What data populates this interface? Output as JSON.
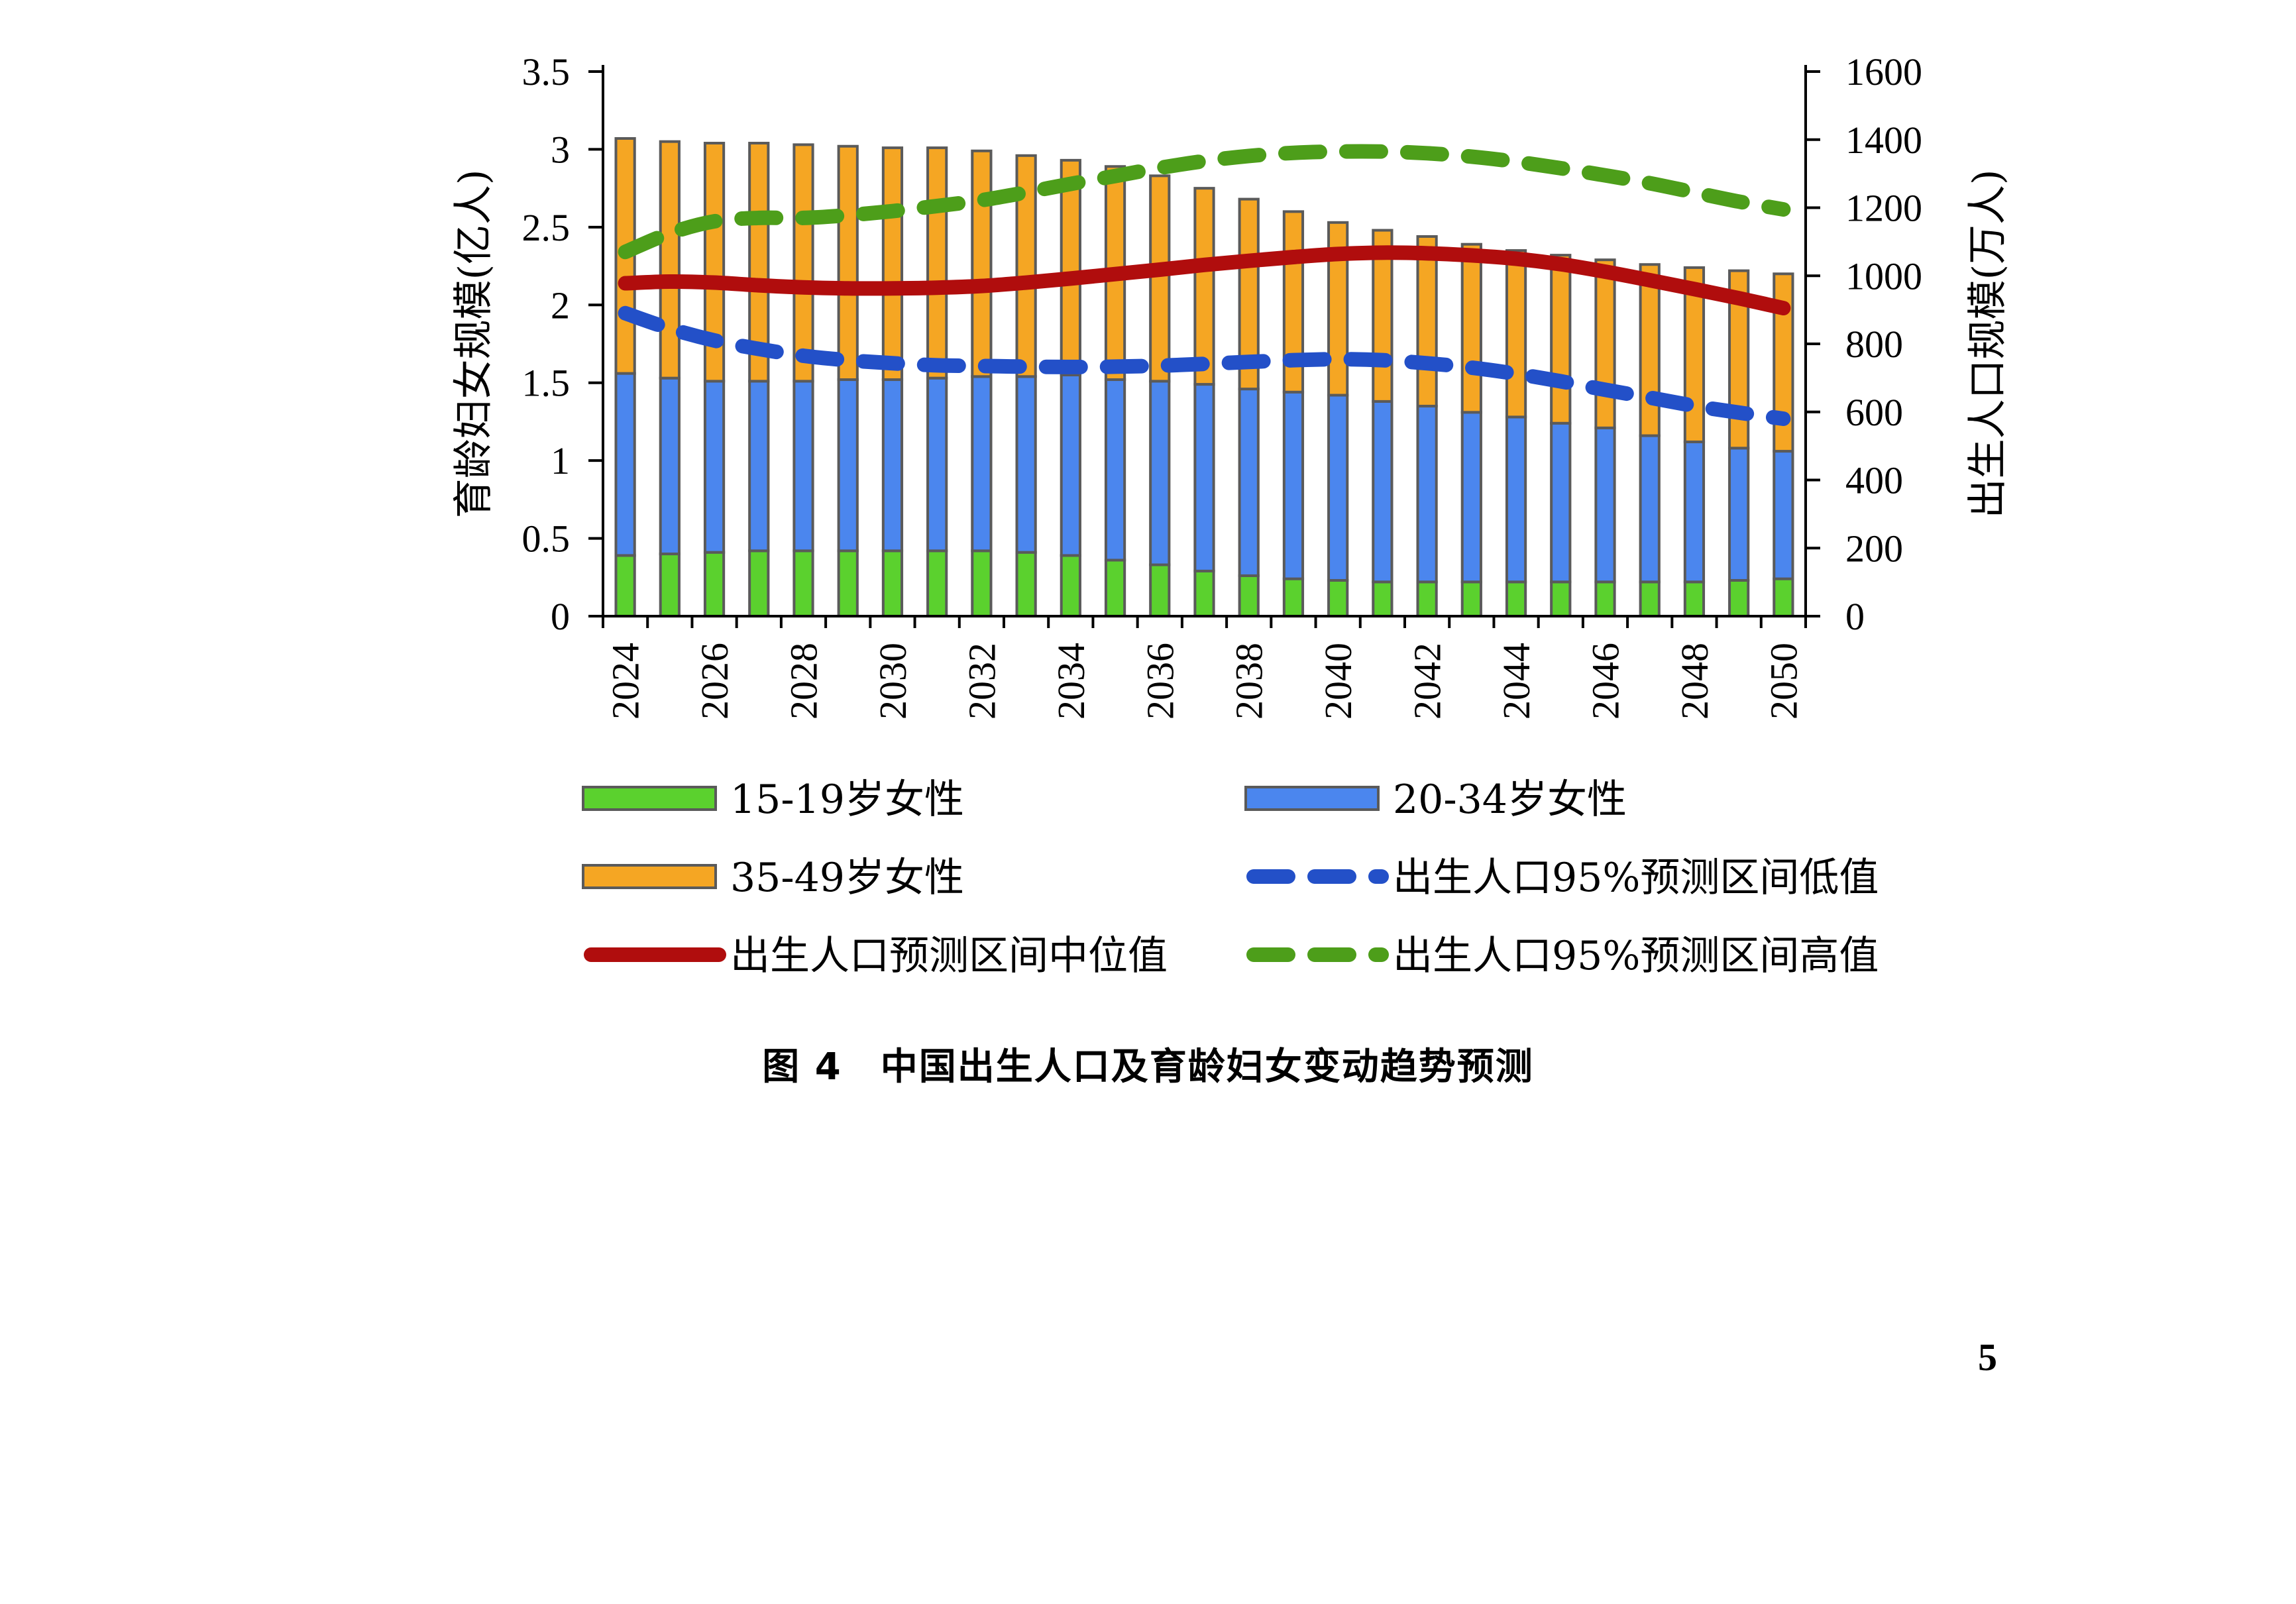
{
  "caption": "图 4　中国出生人口及育龄妇女变动趋势预测",
  "page_number": "5",
  "chart_data": {
    "type": "bar",
    "stacked": true,
    "title": "",
    "categories": [
      "2024",
      "2025",
      "2026",
      "2027",
      "2028",
      "2029",
      "2030",
      "2031",
      "2032",
      "2033",
      "2034",
      "2035",
      "2036",
      "2037",
      "2038",
      "2039",
      "2040",
      "2041",
      "2042",
      "2043",
      "2044",
      "2045",
      "2046",
      "2047",
      "2048",
      "2049",
      "2050"
    ],
    "x_tick_labels": [
      "2024",
      "2026",
      "2028",
      "2030",
      "2032",
      "2034",
      "2036",
      "2038",
      "2040",
      "2042",
      "2044",
      "2046",
      "2048",
      "2050"
    ],
    "y_left": {
      "label": "育龄妇女规模(亿人)",
      "lim": [
        0,
        3.5
      ],
      "ticks": [
        "0",
        "0.5",
        "1",
        "1.5",
        "2",
        "2.5",
        "3",
        "3.5"
      ]
    },
    "y_right": {
      "label": "出生人口规模(万人)",
      "lim": [
        0,
        1600
      ],
      "ticks": [
        "0",
        "200",
        "400",
        "600",
        "800",
        "1000",
        "1200",
        "1400",
        "1600"
      ]
    },
    "bar_series": [
      {
        "name": "15-19岁女性",
        "color": "#5bd12e",
        "values": [
          0.39,
          0.4,
          0.41,
          0.42,
          0.42,
          0.42,
          0.42,
          0.42,
          0.42,
          0.41,
          0.39,
          0.36,
          0.33,
          0.29,
          0.26,
          0.24,
          0.23,
          0.22,
          0.22,
          0.22,
          0.22,
          0.22,
          0.22,
          0.22,
          0.22,
          0.23,
          0.24
        ]
      },
      {
        "name": "20-34岁女性",
        "color": "#4b86ee",
        "values": [
          1.17,
          1.13,
          1.1,
          1.09,
          1.09,
          1.1,
          1.1,
          1.11,
          1.12,
          1.13,
          1.16,
          1.16,
          1.18,
          1.2,
          1.2,
          1.2,
          1.19,
          1.16,
          1.13,
          1.09,
          1.06,
          1.02,
          0.99,
          0.94,
          0.9,
          0.85,
          0.82
        ]
      },
      {
        "name": "35-49岁女性",
        "color": "#f5a623",
        "values": [
          1.51,
          1.52,
          1.53,
          1.53,
          1.52,
          1.5,
          1.49,
          1.48,
          1.45,
          1.42,
          1.38,
          1.37,
          1.32,
          1.26,
          1.22,
          1.16,
          1.11,
          1.1,
          1.09,
          1.08,
          1.07,
          1.08,
          1.08,
          1.1,
          1.12,
          1.14,
          1.14
        ]
      }
    ],
    "line_series": [
      {
        "name": "出生人口95%预测区间低值",
        "color": "#2350c8",
        "style": "dashed",
        "axis": "right",
        "values": [
          890,
          845,
          810,
          785,
          765,
          752,
          743,
          737,
          735,
          733,
          732,
          733,
          736,
          741,
          747,
          752,
          755,
          752,
          743,
          730,
          712,
          690,
          665,
          642,
          618,
          598,
          580
        ]
      },
      {
        "name": "出生人口预测区间中位值",
        "color": "#b00d0d",
        "style": "solid",
        "axis": "right",
        "values": [
          978,
          983,
          980,
          972,
          966,
          963,
          963,
          965,
          970,
          980,
          992,
          1005,
          1018,
          1032,
          1044,
          1055,
          1064,
          1068,
          1066,
          1060,
          1050,
          1034,
          1012,
          987,
          961,
          934,
          905
        ]
      },
      {
        "name": "出生人口95%预测区间高值",
        "color": "#4d9e1a",
        "style": "dashed",
        "axis": "right",
        "values": [
          1070,
          1125,
          1160,
          1170,
          1170,
          1178,
          1190,
          1205,
          1222,
          1245,
          1270,
          1293,
          1317,
          1337,
          1352,
          1361,
          1365,
          1365,
          1360,
          1350,
          1335,
          1316,
          1295,
          1272,
          1245,
          1218,
          1195
        ]
      }
    ],
    "legend": {
      "placement": "bottom",
      "columns": 2,
      "order": [
        "15-19岁女性",
        "20-34岁女性",
        "35-49岁女性",
        "出生人口95%预测区间低值",
        "出生人口预测区间中位值",
        "出生人口95%预测区间高值"
      ]
    }
  }
}
